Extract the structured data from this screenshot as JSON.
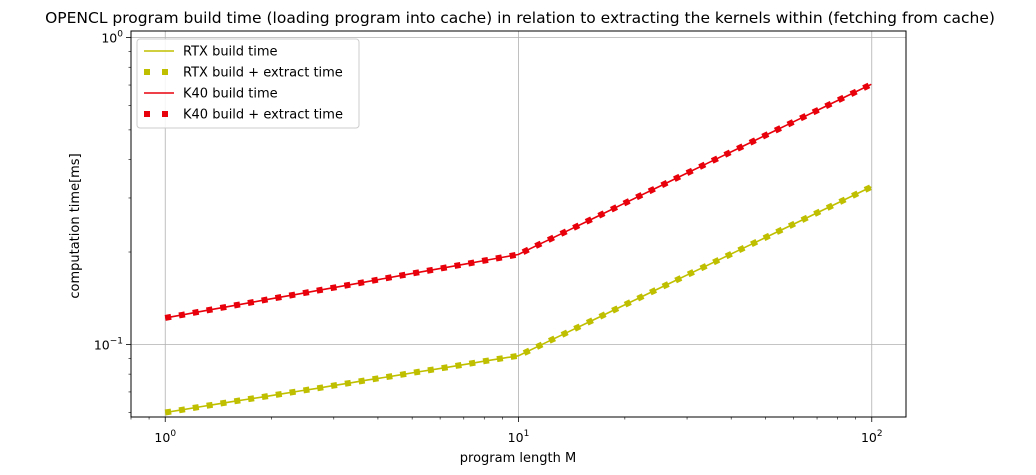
{
  "chart_data": {
    "type": "line",
    "title": "OPENCL program build time (loading program into cache) in relation to extracting the kernels within (fetching from cache)",
    "xlabel": "program length M",
    "ylabel": "computation time[ms]",
    "xscale": "log",
    "yscale": "log",
    "xlim": [
      0.8,
      125
    ],
    "ylim": [
      0.058,
      1.05
    ],
    "grid": true,
    "legend_position": "upper left",
    "x_ticks": [
      {
        "value": 1,
        "label": "10^0"
      },
      {
        "value": 10,
        "label": "10^1"
      },
      {
        "value": 100,
        "label": "10^2"
      }
    ],
    "y_ticks": [
      {
        "value": 0.1,
        "label": "10^-1"
      },
      {
        "value": 1,
        "label": "10^0"
      }
    ],
    "x": [
      1.0,
      1.116,
      1.245,
      1.389,
      1.55,
      1.729,
      1.93,
      2.154,
      2.403,
      2.682,
      2.992,
      3.338,
      3.725,
      4.156,
      4.638,
      5.175,
      5.774,
      6.443,
      7.189,
      8.022,
      8.951,
      9.987,
      11.144,
      12.435,
      13.875,
      15.482,
      17.275,
      19.275,
      21.507,
      23.998,
      26.777,
      29.878,
      33.338,
      37.198,
      41.506,
      46.312,
      51.675,
      57.659,
      64.336,
      71.787,
      80.1,
      89.375,
      99.725
    ],
    "series": [
      {
        "name": "RTX build time",
        "style": "solid",
        "color": "#bfbf00",
        "values": [
          0.06,
          0.0612,
          0.0625,
          0.0638,
          0.0651,
          0.0664,
          0.0677,
          0.0691,
          0.0705,
          0.0719,
          0.0734,
          0.0749,
          0.0765,
          0.078,
          0.0796,
          0.0813,
          0.0829,
          0.0846,
          0.0864,
          0.0882,
          0.09,
          0.0918,
          0.0975,
          0.1036,
          0.11,
          0.1169,
          0.1241,
          0.1319,
          0.1401,
          0.1488,
          0.158,
          0.1679,
          0.1783,
          0.1894,
          0.2012,
          0.2137,
          0.227,
          0.2411,
          0.2561,
          0.2721,
          0.289,
          0.307,
          0.3261
        ]
      },
      {
        "name": "RTX build + extract time",
        "style": "dotted",
        "color": "#bfbf00",
        "values": [
          0.06,
          0.0612,
          0.0625,
          0.0638,
          0.0651,
          0.0664,
          0.0677,
          0.0691,
          0.0705,
          0.0719,
          0.0734,
          0.0749,
          0.0765,
          0.078,
          0.0796,
          0.0813,
          0.0829,
          0.0846,
          0.0864,
          0.0882,
          0.09,
          0.0918,
          0.0975,
          0.1036,
          0.11,
          0.1169,
          0.1241,
          0.1319,
          0.1401,
          0.1488,
          0.158,
          0.1679,
          0.1783,
          0.1894,
          0.2012,
          0.2137,
          0.227,
          0.2411,
          0.2561,
          0.2721,
          0.289,
          0.307,
          0.3261
        ]
      },
      {
        "name": "K40 build time",
        "style": "solid",
        "color": "#e8000b",
        "values": [
          0.122,
          0.1248,
          0.1277,
          0.1306,
          0.1336,
          0.1366,
          0.1398,
          0.143,
          0.1462,
          0.1496,
          0.153,
          0.1565,
          0.1601,
          0.1638,
          0.1675,
          0.1714,
          0.1753,
          0.1793,
          0.1834,
          0.1876,
          0.1919,
          0.1963,
          0.2087,
          0.2217,
          0.2356,
          0.2504,
          0.2661,
          0.2828,
          0.3006,
          0.3194,
          0.3394,
          0.3607,
          0.3833,
          0.4073,
          0.4329,
          0.46,
          0.4889,
          0.5195,
          0.5521,
          0.5867,
          0.6235,
          0.6626,
          0.7041
        ]
      },
      {
        "name": "K40 build + extract time",
        "style": "dotted",
        "color": "#e8000b",
        "values": [
          0.122,
          0.1248,
          0.1277,
          0.1306,
          0.1336,
          0.1366,
          0.1398,
          0.143,
          0.1462,
          0.1496,
          0.153,
          0.1565,
          0.1601,
          0.1638,
          0.1675,
          0.1714,
          0.1753,
          0.1793,
          0.1834,
          0.1876,
          0.1919,
          0.1963,
          0.2087,
          0.2217,
          0.2356,
          0.2504,
          0.2661,
          0.2828,
          0.3006,
          0.3194,
          0.3394,
          0.3607,
          0.3833,
          0.4073,
          0.4329,
          0.46,
          0.4889,
          0.5195,
          0.5521,
          0.5867,
          0.6235,
          0.6626,
          0.7041
        ]
      }
    ]
  }
}
